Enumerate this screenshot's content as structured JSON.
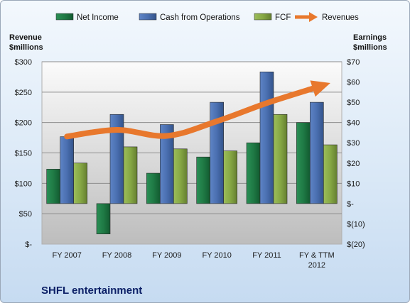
{
  "chart_data": {
    "type": "bar",
    "categories": [
      [
        "FY 2007"
      ],
      [
        "FY 2008"
      ],
      [
        "FY 2009"
      ],
      [
        "FY 2010"
      ],
      [
        "FY 2011"
      ],
      [
        "FY & TTM",
        "2012"
      ]
    ],
    "series": [
      {
        "name": "Net Income",
        "axis": "right",
        "color": "#1f7a45",
        "values": [
          17,
          -15,
          15,
          23,
          30,
          40
        ]
      },
      {
        "name": "Cash from Operations",
        "axis": "right",
        "color": "#4a6fb0",
        "values": [
          33,
          44,
          39,
          50,
          65,
          50
        ]
      },
      {
        "name": "FCF",
        "axis": "right",
        "color": "#86a844",
        "values": [
          20,
          28,
          27,
          26,
          44,
          29
        ]
      }
    ],
    "line_series": {
      "name": "Revenues",
      "axis": "left",
      "color": "#e8782d",
      "values": [
        177,
        188,
        178,
        202,
        232,
        258
      ]
    },
    "left_axis": {
      "label": [
        "Revenue",
        "$millions"
      ],
      "ylim": [
        0,
        300
      ],
      "ticks": [
        "$-",
        "$50",
        "$100",
        "$150",
        "$200",
        "$250",
        "$300"
      ]
    },
    "right_axis": {
      "label": [
        "Earnings",
        "$millions"
      ],
      "ylim": [
        -20,
        70
      ],
      "ticks": [
        "$(20)",
        "$(10)",
        "$-",
        "$10",
        "$20",
        "$30",
        "$40",
        "$50",
        "$60",
        "$70"
      ]
    },
    "grid": true,
    "legend": "top",
    "footer": "SHFL entertainment"
  }
}
